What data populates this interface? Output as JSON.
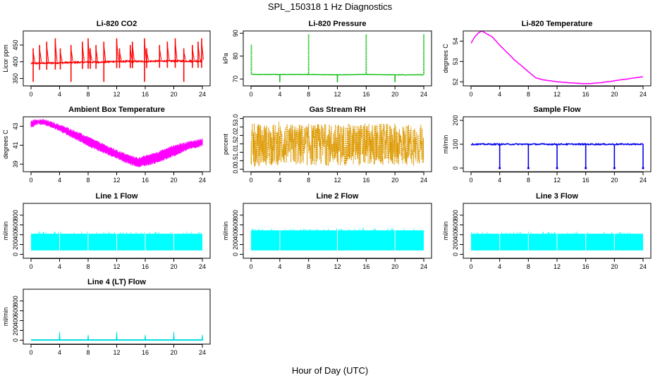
{
  "figure": {
    "title": "SPL_150318  1 Hz Diagnostics",
    "xlabel": "Hour of Day (UTC)"
  },
  "chart_data": [
    {
      "type": "line",
      "title": "Li-820 CO2",
      "ylabel": "Licor ppm",
      "color": "#ff0000",
      "xlim": [
        0,
        24
      ],
      "ylim": [
        328,
        492
      ],
      "xticks": [
        0,
        4,
        8,
        12,
        16,
        20,
        24
      ],
      "yticks": [
        350,
        400,
        450
      ],
      "mode": "co2",
      "series": [
        {
          "x": [
            0,
            2,
            4,
            6,
            8,
            10,
            12,
            14,
            16,
            18,
            20,
            22,
            24
          ],
          "y": [
            395,
            396,
            397,
            398,
            399,
            399,
            401,
            401,
            401,
            402,
            402,
            402,
            402
          ]
        }
      ],
      "spike_hours": [
        0.3,
        1.2,
        2.2,
        3.4,
        4.1,
        5.6,
        7.2,
        8.0,
        8.3,
        9.1,
        10.2,
        12.0,
        12.4,
        13.9,
        14.2,
        15.9,
        16.2,
        18.0,
        19.1,
        20.2,
        21.4,
        22.6,
        23.4,
        23.9
      ]
    },
    {
      "type": "line",
      "title": "Li-820 Pressure",
      "ylabel": "kPa",
      "color": "#00bb00",
      "xlim": [
        0,
        24
      ],
      "ylim": [
        67,
        91
      ],
      "xticks": [
        0,
        4,
        8,
        12,
        16,
        20,
        24
      ],
      "yticks": [
        70,
        80,
        90
      ],
      "mode": "pressure",
      "series": [
        {
          "x": [
            0,
            0.2,
            4,
            8,
            12,
            16,
            20,
            24
          ],
          "y": [
            73,
            72,
            72,
            72,
            71.8,
            72,
            71.8,
            71.8
          ]
        }
      ],
      "spike_hours": [
        0.05,
        8.0,
        16.0,
        24.0
      ],
      "dip_hours": [
        4.0,
        12.0,
        20.0
      ]
    },
    {
      "type": "line",
      "title": "Li-820 Temperature",
      "ylabel": "degrees C",
      "color": "#ff00ff",
      "xlim": [
        0,
        24
      ],
      "ylim": [
        51.8,
        54.5
      ],
      "xticks": [
        0,
        4,
        8,
        12,
        16,
        20,
        24
      ],
      "yticks": [
        52.0,
        53.0,
        54.0
      ],
      "mode": "line",
      "series": [
        {
          "x": [
            0,
            0.5,
            1,
            1.5,
            2,
            3,
            4,
            6,
            8,
            9,
            10,
            12,
            14,
            16,
            18,
            20,
            22,
            24
          ],
          "y": [
            53.9,
            54.2,
            54.4,
            54.5,
            54.4,
            54.2,
            53.8,
            53.1,
            52.5,
            52.2,
            52.1,
            52.0,
            51.95,
            51.9,
            51.95,
            52.05,
            52.15,
            52.25
          ]
        }
      ]
    },
    {
      "type": "area",
      "title": "Ambient Box Temperature",
      "ylabel": "degrees C",
      "color": "#ff00ff",
      "xlim": [
        0,
        24
      ],
      "ylim": [
        38.2,
        44.0
      ],
      "xticks": [
        0,
        4,
        8,
        12,
        16,
        20,
        24
      ],
      "yticks": [
        39,
        41,
        43
      ],
      "mode": "band",
      "series": [
        {
          "x": [
            0,
            1,
            2,
            4,
            6,
            8,
            10,
            12,
            14,
            15,
            16,
            18,
            20,
            22,
            24
          ],
          "y": [
            42.9,
            43.3,
            43.2,
            42.6,
            41.8,
            41.0,
            40.3,
            39.7,
            39.0,
            38.8,
            38.9,
            39.3,
            39.9,
            40.6,
            41.0
          ]
        },
        {
          "x": [
            0,
            1,
            2,
            4,
            6,
            8,
            10,
            12,
            14,
            15,
            16,
            18,
            20,
            22,
            24
          ],
          "y": [
            43.5,
            43.7,
            43.6,
            43.1,
            42.5,
            41.8,
            41.1,
            40.4,
            39.8,
            39.6,
            39.8,
            40.3,
            40.9,
            41.3,
            41.6
          ]
        }
      ]
    },
    {
      "type": "area",
      "title": "Gas Stream RH",
      "ylabel": "percent",
      "color": "#dd9900",
      "xlim": [
        0,
        24
      ],
      "ylim": [
        -0.15,
        3.1
      ],
      "xticks": [
        0,
        4,
        8,
        12,
        16,
        20,
        24
      ],
      "yticks": [
        0.0,
        0.5,
        1.0,
        1.5,
        2.0,
        2.5,
        3.0
      ],
      "mode": "noise",
      "series": [
        {
          "x": [
            0,
            24
          ],
          "y": [
            0.0,
            2.9
          ]
        }
      ]
    },
    {
      "type": "line",
      "title": "Sample Flow",
      "ylabel": "ml/min",
      "color": "#0000ee",
      "xlim": [
        0,
        24
      ],
      "ylim": [
        -15,
        215
      ],
      "xticks": [
        0,
        4,
        8,
        12,
        16,
        20,
        24
      ],
      "yticks": [
        0,
        100,
        200
      ],
      "mode": "sample",
      "series": [
        {
          "x": [
            0,
            24
          ],
          "y": [
            100,
            100
          ]
        }
      ],
      "dip_hours": [
        4.0,
        8.0,
        12.0,
        16.0,
        20.0,
        24.0
      ]
    },
    {
      "type": "area",
      "title": "Line 1 Flow",
      "ylabel": "ml/min",
      "color": "#00ffff",
      "xlim": [
        0,
        24
      ],
      "ylim": [
        -80,
        1040
      ],
      "xticks": [
        0,
        4,
        8,
        12,
        16,
        20,
        24
      ],
      "yticks": [
        0,
        200,
        400,
        600,
        800
      ],
      "mode": "block",
      "series": [
        {
          "x": [
            0,
            24
          ],
          "y": [
            80,
            420
          ]
        }
      ],
      "gap_hours": [
        4.0,
        8.0,
        12.0,
        16.0,
        20.0
      ]
    },
    {
      "type": "area",
      "title": "Line 2 Flow",
      "ylabel": "ml/min",
      "color": "#00ffff",
      "xlim": [
        0,
        24
      ],
      "ylim": [
        -80,
        1040
      ],
      "xticks": [
        0,
        4,
        8,
        12,
        16,
        20,
        24
      ],
      "yticks": [
        0,
        200,
        400,
        600,
        800
      ],
      "mode": "block",
      "series": [
        {
          "x": [
            0,
            24
          ],
          "y": [
            80,
            490
          ]
        }
      ],
      "gap_hours": [
        4.0,
        12.0,
        20.0
      ]
    },
    {
      "type": "area",
      "title": "Line 3 Flow",
      "ylabel": "ml/min",
      "color": "#00ffff",
      "xlim": [
        0,
        24
      ],
      "ylim": [
        -80,
        1040
      ],
      "xticks": [
        0,
        4,
        8,
        12,
        16,
        20,
        24
      ],
      "yticks": [
        0,
        200,
        400,
        600,
        800
      ],
      "mode": "block",
      "series": [
        {
          "x": [
            0,
            24
          ],
          "y": [
            80,
            420
          ]
        }
      ],
      "gap_hours": [
        4.0,
        8.0,
        12.0,
        16.0,
        20.0
      ]
    },
    {
      "type": "line",
      "title": "Line 4 (LT) Flow",
      "ylabel": "ml/min",
      "color": "#00dddd",
      "xlim": [
        0,
        24
      ],
      "ylim": [
        -80,
        1040
      ],
      "xticks": [
        0,
        4,
        8,
        12,
        16,
        20,
        24
      ],
      "yticks": [
        0,
        200,
        400,
        600,
        800
      ],
      "mode": "lt",
      "series": [
        {
          "x": [
            0,
            24
          ],
          "y": [
            5,
            5
          ]
        }
      ],
      "spike_hours": [
        4.0,
        8.0,
        12.0,
        16.0,
        20.0,
        24.0
      ]
    }
  ]
}
